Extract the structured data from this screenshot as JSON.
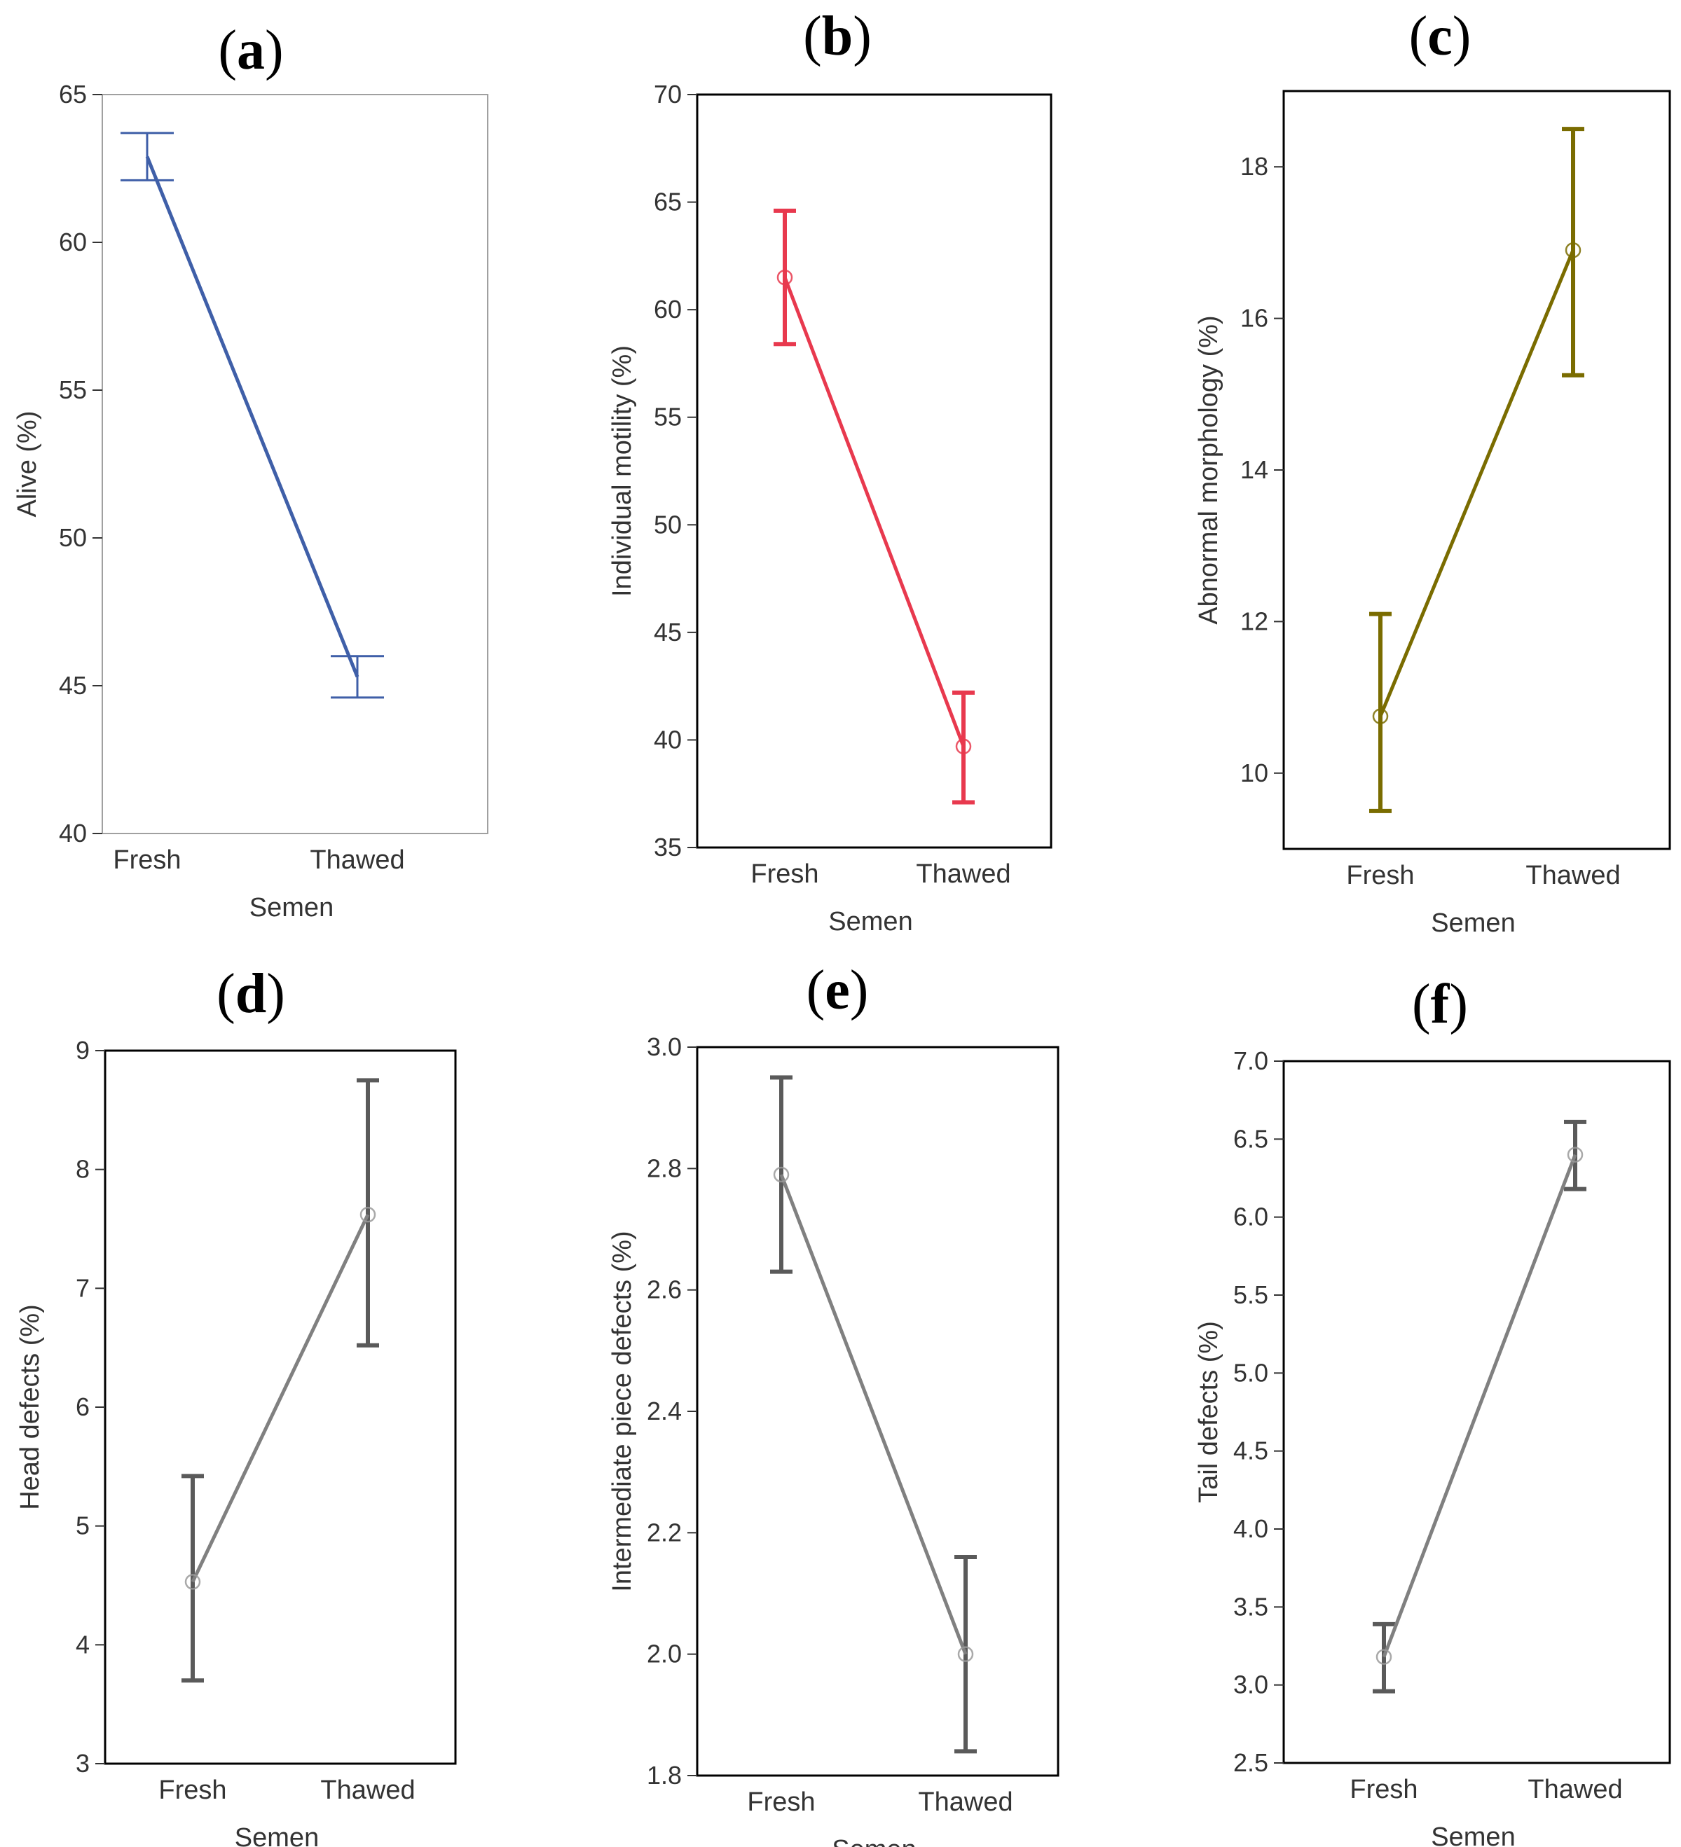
{
  "chart_data": [
    {
      "type": "line",
      "panel": "(a)",
      "xlabel": "Semen",
      "ylabel": "Alive (%)",
      "categories": [
        "Fresh",
        "Thawed"
      ],
      "ylim": [
        40,
        65
      ],
      "yticks": [
        "40",
        "45",
        "50",
        "55",
        "60",
        "65"
      ],
      "values": [
        62.9,
        45.3
      ],
      "error_low": [
        62.1,
        44.6
      ],
      "error_high": [
        63.7,
        46.0
      ],
      "color": "#3f5fa8",
      "markers": false,
      "error_style": "wide"
    },
    {
      "type": "line",
      "panel": "(b)",
      "xlabel": "Semen",
      "ylabel": "Individual motility (%)",
      "categories": [
        "Fresh",
        "Thawed"
      ],
      "ylim": [
        35,
        70
      ],
      "yticks": [
        "35",
        "40",
        "45",
        "50",
        "55",
        "60",
        "65",
        "70"
      ],
      "values": [
        61.5,
        39.7
      ],
      "error_low": [
        58.4,
        37.1
      ],
      "error_high": [
        64.6,
        42.2
      ],
      "color": "#e8394e",
      "markers": true,
      "error_style": "narrow"
    },
    {
      "type": "line",
      "panel": "(c)",
      "xlabel": "Semen",
      "ylabel": "Abnormal morphology (%)",
      "categories": [
        "Fresh",
        "Thawed"
      ],
      "ylim": [
        9,
        19
      ],
      "yticks": [
        "10",
        "12",
        "14",
        "16",
        "18"
      ],
      "values": [
        10.75,
        16.9
      ],
      "error_low": [
        9.5,
        15.25
      ],
      "error_high": [
        12.1,
        18.5
      ],
      "color": "#7a6c00",
      "markers": true,
      "error_style": "narrow"
    },
    {
      "type": "line",
      "panel": "(d)",
      "xlabel": "Semen",
      "ylabel": "Head defects (%)",
      "categories": [
        "Fresh",
        "Thawed"
      ],
      "ylim": [
        3,
        9
      ],
      "yticks": [
        "3",
        "4",
        "5",
        "6",
        "7",
        "8",
        "9"
      ],
      "values": [
        4.53,
        7.62
      ],
      "error_low": [
        3.7,
        6.52
      ],
      "error_high": [
        5.42,
        8.75
      ],
      "color": "#808080",
      "markers": true,
      "error_style": "narrow"
    },
    {
      "type": "line",
      "panel": "(e)",
      "xlabel": "Semen",
      "ylabel": "Intermediate piece defects (%)",
      "categories": [
        "Fresh",
        "Thawed"
      ],
      "ylim": [
        1.8,
        3.0
      ],
      "yticks": [
        "1.8",
        "2.0",
        "2.2",
        "2.4",
        "2.6",
        "2.8",
        "3.0"
      ],
      "values": [
        2.79,
        2.0
      ],
      "error_low": [
        2.63,
        1.84
      ],
      "error_high": [
        2.95,
        2.16
      ],
      "color": "#808080",
      "markers": true,
      "error_style": "narrow"
    },
    {
      "type": "line",
      "panel": "(f)",
      "xlabel": "Semen",
      "ylabel": "Tail defects (%)",
      "categories": [
        "Fresh",
        "Thawed"
      ],
      "ylim": [
        2.5,
        7.0
      ],
      "yticks": [
        "2.5",
        "3.0",
        "3.5",
        "4.0",
        "4.5",
        "5.0",
        "5.5",
        "6.0",
        "6.5",
        "7.0"
      ],
      "values": [
        3.18,
        6.4
      ],
      "error_low": [
        2.96,
        6.18
      ],
      "error_high": [
        3.39,
        6.61
      ],
      "color": "#808080",
      "markers": true,
      "error_style": "narrow"
    }
  ]
}
